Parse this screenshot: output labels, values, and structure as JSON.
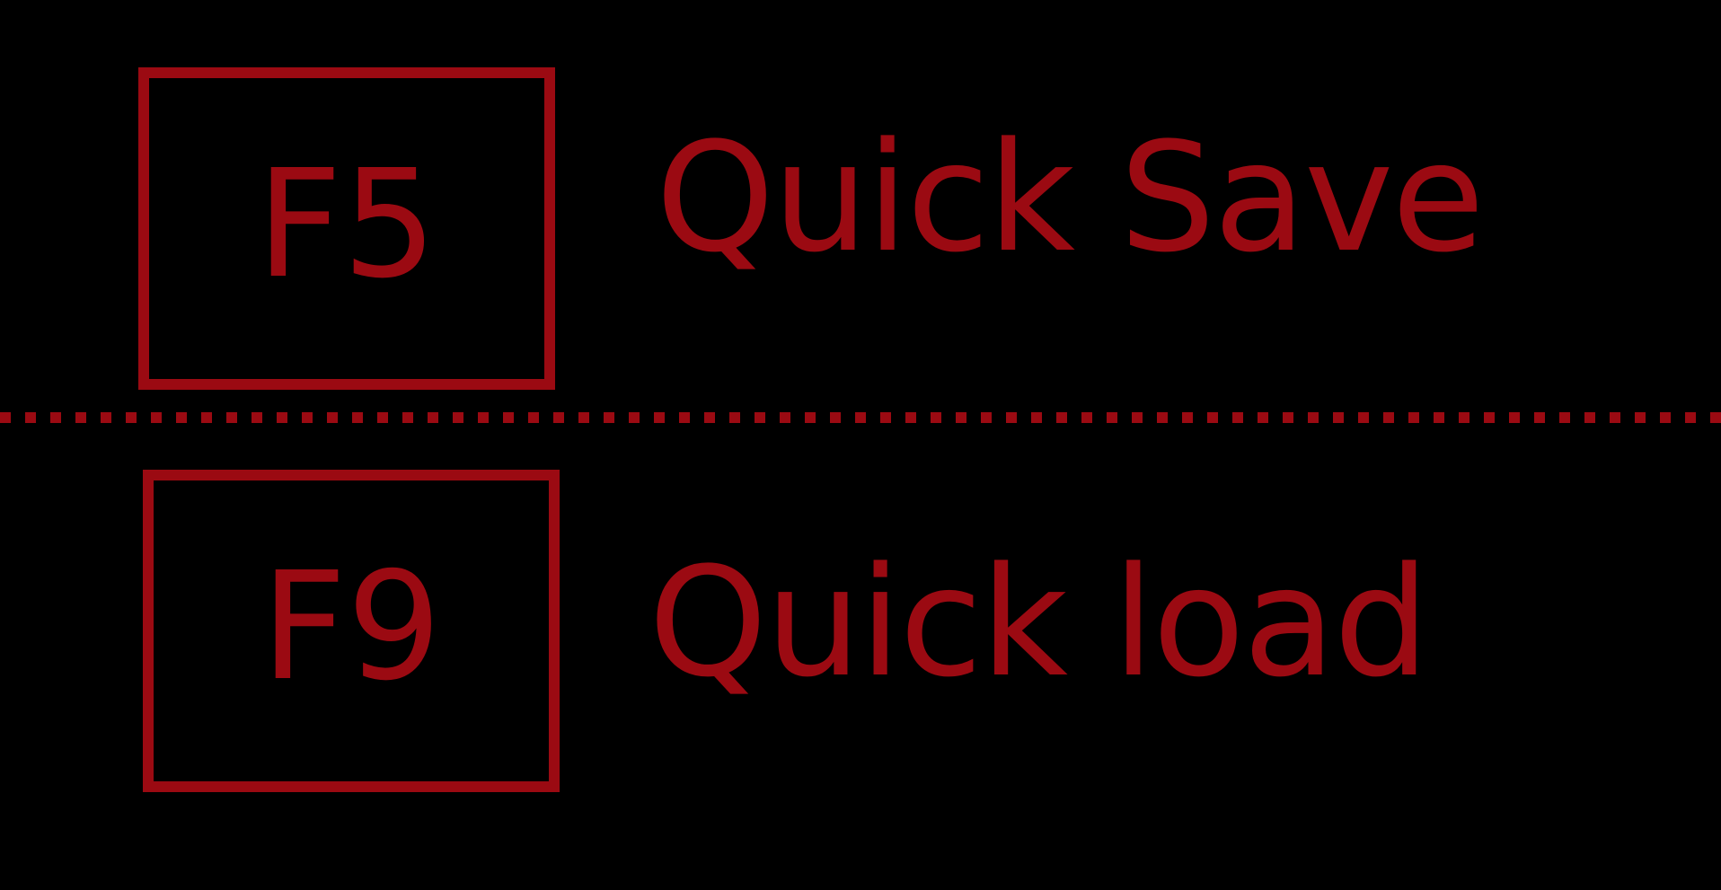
{
  "theme": {
    "background": "#000000",
    "accent": "#9b0a12"
  },
  "bindings": [
    {
      "key": "F5",
      "action": "Quick Save"
    },
    {
      "key": "F9",
      "action": "Quick load"
    }
  ]
}
